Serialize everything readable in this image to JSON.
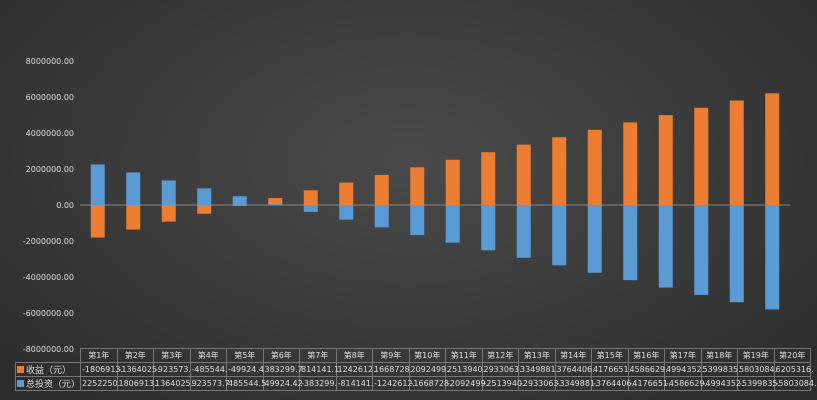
{
  "chart_data": {
    "type": "bar",
    "title": "",
    "xlabel": "",
    "ylabel": "",
    "ylim": [
      -8000000,
      8000000
    ],
    "yticks": [
      8000000,
      6000000,
      4000000,
      2000000,
      0,
      -2000000,
      -4000000,
      -6000000,
      -8000000
    ],
    "ytick_labels": [
      "8000000.00",
      "6000000.00",
      "4000000.00",
      "2000000.00",
      "0.00",
      "-2000000.00",
      "-4000000.00",
      "-6000000.00",
      "-8000000.00"
    ],
    "categories": [
      "第1年",
      "第2年",
      "第3年",
      "第4年",
      "第5年",
      "第6年",
      "第7年",
      "第8年",
      "第9年",
      "第10年",
      "第11年",
      "第12年",
      "第13年",
      "第14年",
      "第15年",
      "第16年",
      "第17年",
      "第18年",
      "第19年",
      "第20年"
    ],
    "series": [
      {
        "name": "收益（元）",
        "color": "#ed7d31",
        "values": [
          -1806913,
          -1364025,
          -923573,
          -485544,
          -49924.4,
          383299.7,
          814141.1,
          1242612,
          1668728,
          2092499,
          2513940,
          2933063,
          3349881,
          3764406,
          4176651,
          4586629,
          4994352,
          5399835,
          5803084,
          6205316
        ],
        "labels": [
          "-1806913.",
          "-1364025.",
          "-923573.",
          "-485544.",
          "-49924.4",
          "383299.7",
          "814141.1",
          "1242612.",
          "1668728.",
          "2092499.",
          "2513940.",
          "2933063.",
          "3349881.",
          "3764406.",
          "4176651.",
          "4586629.",
          "4994352.",
          "5399835.",
          "5803084.",
          "6205316."
        ]
      },
      {
        "name": "总投资（元）",
        "color": "#5b9bd5",
        "values": [
          2252250,
          1806913,
          1364025,
          923573.7,
          485544.5,
          49924.42,
          -383299,
          -814141,
          -1242612,
          -1668728,
          -2092499,
          -2513940,
          -2933063,
          -3349881,
          -3764406,
          -4176651,
          -4586629,
          -4994352,
          -5399835,
          -5803084
        ],
        "labels": [
          "2252250.",
          "1806913.",
          "1364025.",
          "923573.7",
          "485544.5",
          "49924.42",
          "-383299.",
          "-814141.",
          "-1242612.",
          "-1668728.",
          "-2092499.",
          "-2513940.",
          "-2933063.",
          "-3349881.",
          "-3764406.",
          "-4176651.",
          "-4586629.",
          "-4994352.",
          "-5399835.",
          "-5803084."
        ]
      }
    ],
    "grid": false,
    "legend": "data-table-bottom"
  }
}
